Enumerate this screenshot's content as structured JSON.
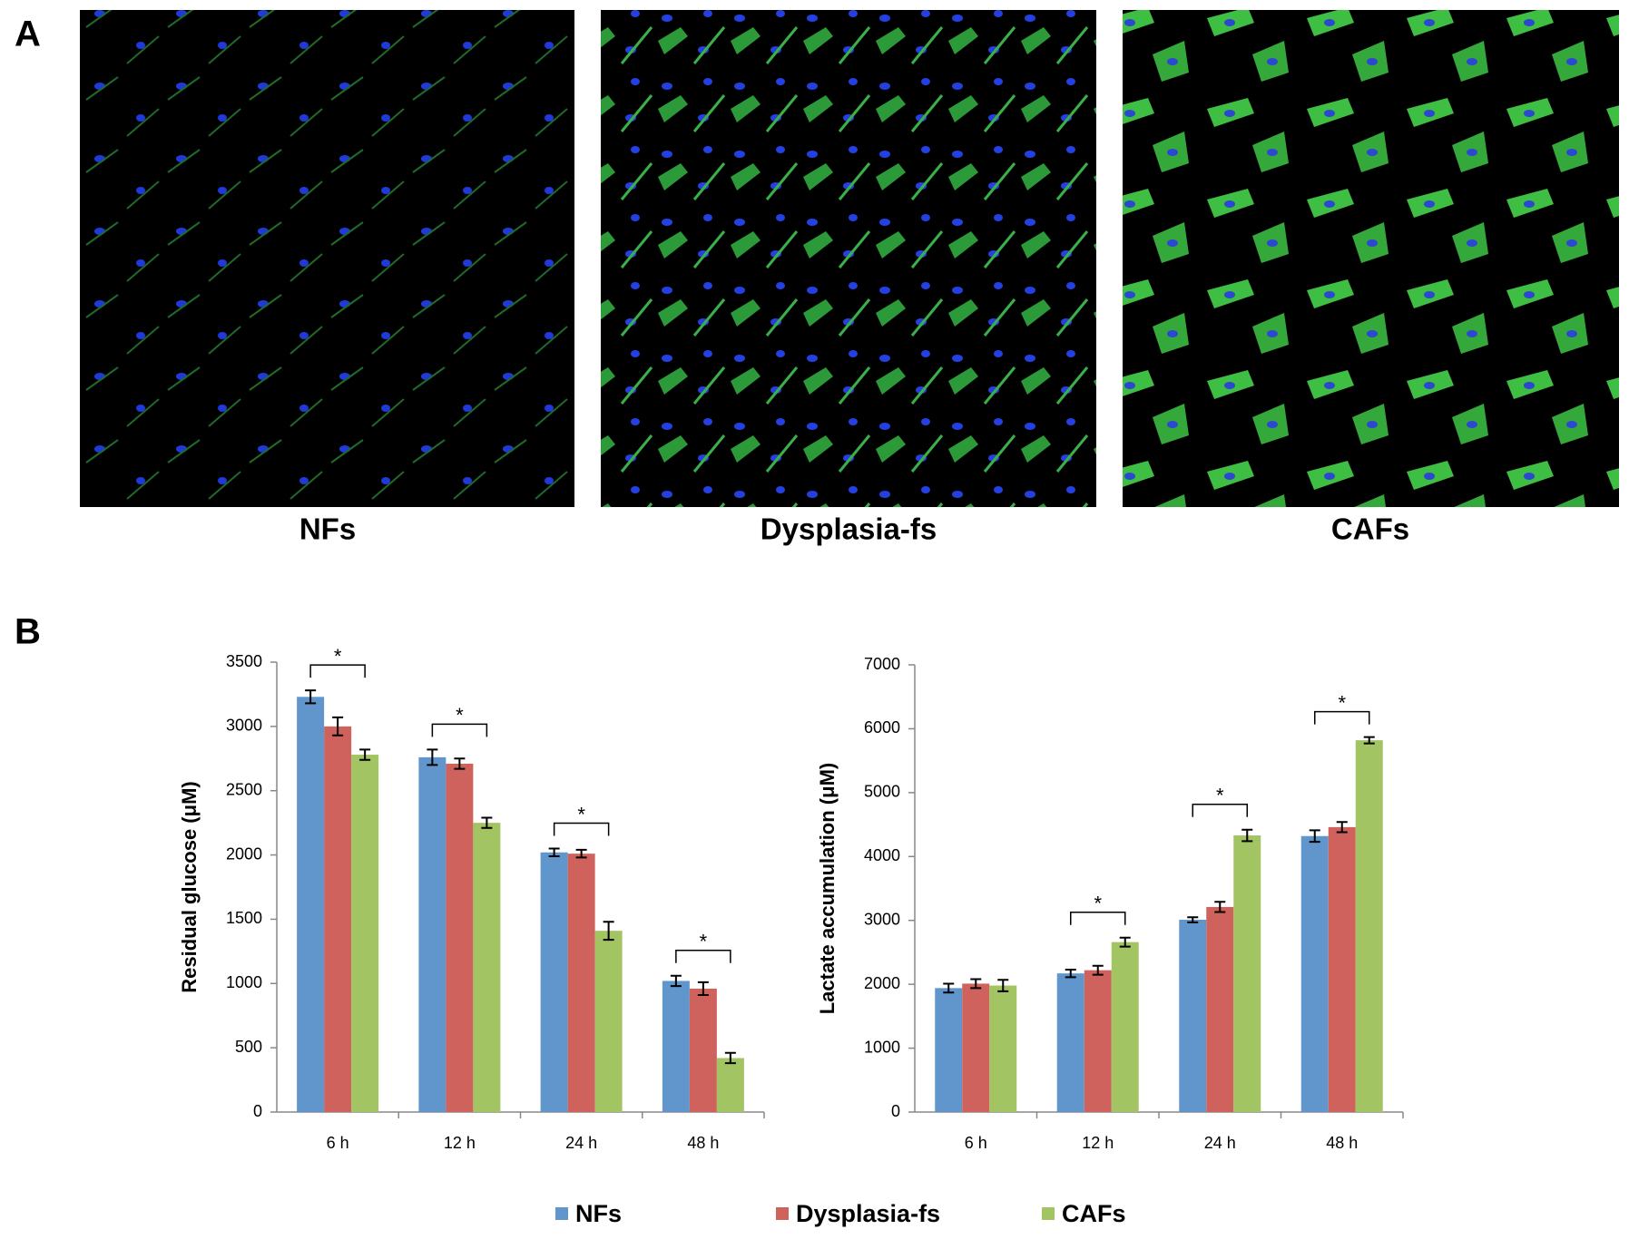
{
  "panel_labels": [
    "A",
    "B"
  ],
  "image_captions": [
    "NFs",
    "Dysplasia-fs",
    "CAFs"
  ],
  "chart_data": [
    {
      "type": "bar",
      "y_label": "Residual glucose (μM)",
      "categories": [
        "6 h",
        "12 h",
        "24 h",
        "48 h"
      ],
      "series": [
        {
          "name": "NFs",
          "color": "#6096cc",
          "values": [
            3230,
            2760,
            2020,
            1020
          ],
          "errors": [
            50,
            60,
            30,
            40
          ]
        },
        {
          "name": "Dysplasia-fs",
          "color": "#cf625c",
          "values": [
            3000,
            2710,
            2010,
            960
          ],
          "errors": [
            70,
            40,
            30,
            50
          ]
        },
        {
          "name": "CAFs",
          "color": "#a3c462",
          "values": [
            2780,
            2250,
            1410,
            420
          ],
          "errors": [
            40,
            40,
            70,
            40
          ]
        }
      ],
      "significance": [
        "*",
        "*",
        "*",
        "*"
      ],
      "ylim": [
        0,
        3500
      ],
      "yticks": [
        0,
        500,
        1000,
        1500,
        2000,
        2500,
        3000,
        3500
      ],
      "grid": false
    },
    {
      "type": "bar",
      "y_label": "Lactate accumulation (μM)",
      "categories": [
        "6 h",
        "12 h",
        "24 h",
        "48 h"
      ],
      "series": [
        {
          "name": "NFs",
          "color": "#6096cc",
          "values": [
            1940,
            2170,
            3010,
            4320
          ],
          "errors": [
            70,
            60,
            40,
            90
          ]
        },
        {
          "name": "Dysplasia-fs",
          "color": "#cf625c",
          "values": [
            2010,
            2220,
            3210,
            4460
          ],
          "errors": [
            70,
            70,
            80,
            80
          ]
        },
        {
          "name": "CAFs",
          "color": "#a3c462",
          "values": [
            1980,
            2660,
            4330,
            5820
          ],
          "errors": [
            90,
            70,
            90,
            50
          ]
        }
      ],
      "significance": [
        null,
        "*",
        "*",
        "*"
      ],
      "ylim": [
        0,
        7000
      ],
      "yticks": [
        0,
        1000,
        2000,
        3000,
        4000,
        5000,
        6000,
        7000
      ],
      "grid": false
    }
  ]
}
